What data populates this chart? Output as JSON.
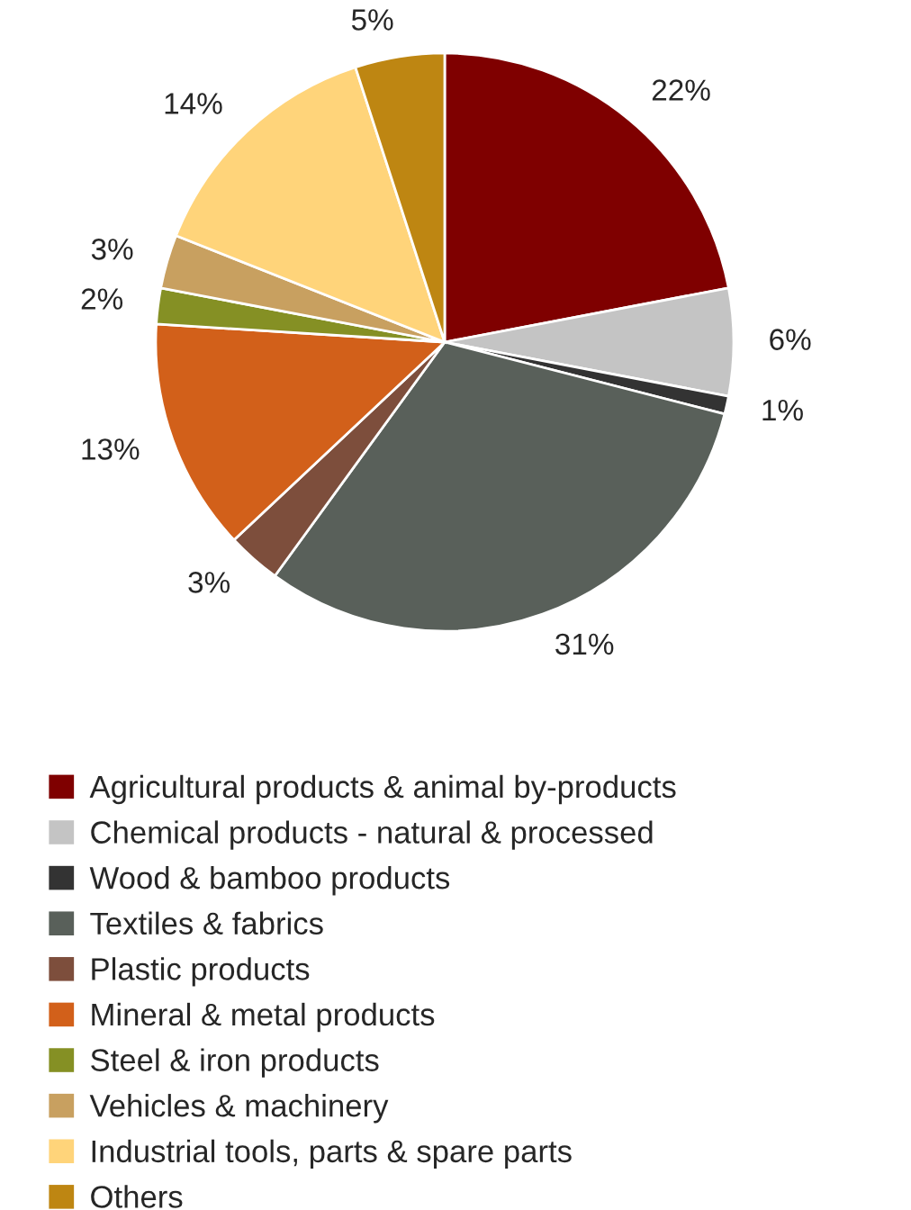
{
  "chart_data": {
    "type": "pie",
    "categories": [
      "Agricultural products & animal by-products",
      "Chemical products - natural & processed",
      "Wood & bamboo products",
      "Textiles & fabrics",
      "Plastic products",
      "Mineral & metal products",
      "Steel & iron products",
      "Vehicles & machinery",
      "Industrial tools, parts & spare parts",
      "Others"
    ],
    "values": [
      22,
      6,
      1,
      31,
      3,
      13,
      2,
      3,
      14,
      5
    ],
    "value_labels": [
      "22%",
      "6%",
      "1%",
      "31%",
      "3%",
      "13%",
      "2%",
      "3%",
      "14%",
      "5%"
    ],
    "colors": [
      "#7f0000",
      "#c4c4c4",
      "#333333",
      "#59605a",
      "#7d4e3c",
      "#d2601a",
      "#859024",
      "#c8a060",
      "#ffd47a",
      "#be8612"
    ],
    "legend": "bottom"
  }
}
